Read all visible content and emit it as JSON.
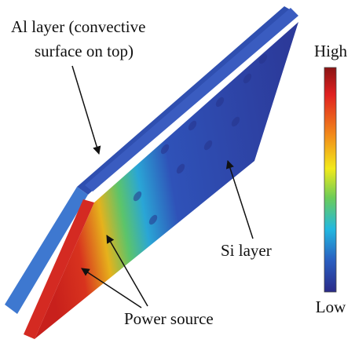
{
  "annotations": [
    {
      "lines": [
        "Al layer (convective",
        "surface on top)"
      ]
    },
    {
      "text": "Si layer"
    },
    {
      "text": "Power source"
    }
  ],
  "colorbar": {
    "high": "High",
    "low": "Low"
  }
}
